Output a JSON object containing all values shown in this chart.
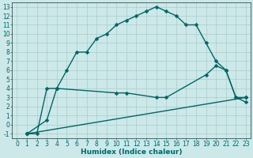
{
  "xlabel": "Humidex (Indice chaleur)",
  "bg_color": "#cce8e8",
  "grid_color": "#aacccc",
  "line_color": "#006666",
  "xlim": [
    -0.5,
    23.5
  ],
  "ylim": [
    -1.5,
    13.5
  ],
  "xticks": [
    0,
    1,
    2,
    3,
    4,
    5,
    6,
    7,
    8,
    9,
    10,
    11,
    12,
    13,
    14,
    15,
    16,
    17,
    18,
    19,
    20,
    21,
    22,
    23
  ],
  "yticks": [
    -1,
    0,
    1,
    2,
    3,
    4,
    5,
    6,
    7,
    8,
    9,
    10,
    11,
    12,
    13
  ],
  "line1_x": [
    1,
    2,
    3,
    4,
    5,
    6,
    7,
    8,
    9,
    10,
    11,
    12,
    13,
    14,
    15,
    16,
    17,
    18,
    19,
    20,
    21,
    22,
    23
  ],
  "line1_y": [
    -1,
    -1,
    4,
    4,
    6,
    8,
    8,
    9.5,
    10,
    11,
    11.5,
    12,
    12.5,
    13,
    12.5,
    12,
    11,
    11,
    9,
    7,
    6,
    3,
    3
  ],
  "line2_x": [
    1,
    3,
    4,
    10,
    11,
    14,
    15,
    19,
    20,
    21,
    22,
    23
  ],
  "line2_y": [
    -1,
    0.5,
    4,
    3.5,
    3.5,
    3,
    3,
    5.5,
    6.5,
    6,
    3,
    2.5
  ],
  "line3_x": [
    1,
    23
  ],
  "line3_y": [
    -1,
    3
  ],
  "markersize": 2.5,
  "linewidth": 1.0,
  "tick_fontsize": 5.5,
  "xlabel_fontsize": 6.5
}
